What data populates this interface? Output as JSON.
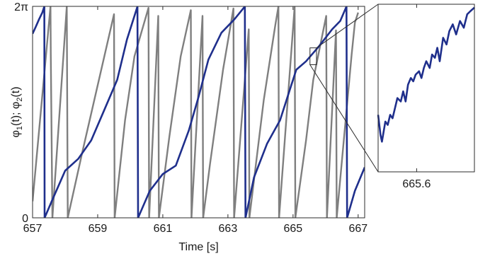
{
  "chart_data": [
    {
      "type": "line",
      "xlabel": "Time [s]",
      "ylabel": {
        "phi1_sym": "φ",
        "phi1_sub": "1",
        "phi1_arg": "(t); ",
        "phi2_sym": "φ",
        "phi2_sub": "2",
        "phi2_arg": "(t)"
      },
      "xlim": [
        657,
        667.2
      ],
      "ylim": [
        0,
        6.2832
      ],
      "x_ticks": [
        {
          "value": 657,
          "label": "657"
        },
        {
          "value": 659,
          "label": "659"
        },
        {
          "value": 661,
          "label": "661"
        },
        {
          "value": 663,
          "label": "663"
        },
        {
          "value": 665,
          "label": "665"
        },
        {
          "value": 667,
          "label": "667"
        }
      ],
      "y_ticks": [
        {
          "value": 0,
          "label": "0"
        },
        {
          "value": 6.2832,
          "label": "2π"
        }
      ],
      "series": [
        {
          "color": "#7f7f7f",
          "width": 2.4,
          "points": [
            [
              657,
              0.49
            ],
            [
              657.55,
              6.28
            ],
            [
              657.56,
              4.88
            ],
            [
              657.61,
              0.0
            ],
            [
              658.05,
              6.28
            ],
            [
              658.08,
              0.0
            ],
            [
              658.54,
              2.0
            ],
            [
              659.5,
              6.05
            ],
            [
              659.52,
              0.0
            ],
            [
              659.84,
              2.9
            ],
            [
              660.13,
              4.8
            ],
            [
              660.56,
              6.24
            ],
            [
              660.58,
              0.0
            ],
            [
              660.86,
              6.0
            ],
            [
              660.88,
              0.0
            ],
            [
              661.2,
              2.4
            ],
            [
              661.55,
              4.8
            ],
            [
              661.86,
              6.17
            ],
            [
              661.88,
              0.0
            ],
            [
              662.22,
              6.0
            ],
            [
              662.24,
              0.0
            ],
            [
              662.45,
              1.6
            ],
            [
              662.85,
              4.4
            ],
            [
              663.17,
              6.22
            ],
            [
              663.19,
              0.0
            ],
            [
              663.64,
              5.6
            ],
            [
              663.66,
              0.0
            ],
            [
              664.1,
              3.5
            ],
            [
              664.45,
              5.7
            ],
            [
              664.55,
              6.28
            ],
            [
              664.57,
              0.0
            ],
            [
              665.05,
              6.28
            ],
            [
              665.07,
              0.0
            ],
            [
              665.4,
              2.3
            ],
            [
              665.62,
              4.1
            ],
            [
              666.02,
              6.0
            ],
            [
              666.04,
              0.0
            ],
            [
              666.32,
              5.57
            ],
            [
              666.34,
              0.0
            ],
            [
              666.8,
              4.85
            ],
            [
              666.9,
              5.8
            ],
            [
              667.0,
              6.1
            ]
          ]
        },
        {
          "color": "#1f2f8c",
          "width": 2.6,
          "points": [
            [
              657,
              5.47
            ],
            [
              657.1,
              5.68
            ],
            [
              657.2,
              5.9
            ],
            [
              657.3,
              6.1
            ],
            [
              657.36,
              6.28
            ],
            [
              657.37,
              0.0
            ],
            [
              657.6,
              0.52
            ],
            [
              658.0,
              1.4
            ],
            [
              658.4,
              1.75
            ],
            [
              658.8,
              2.3
            ],
            [
              659.2,
              3.2
            ],
            [
              659.6,
              4.1
            ],
            [
              659.9,
              5.3
            ],
            [
              660.22,
              6.28
            ],
            [
              660.24,
              0.0
            ],
            [
              660.6,
              0.8
            ],
            [
              661.0,
              1.3
            ],
            [
              661.4,
              1.55
            ],
            [
              661.8,
              2.6
            ],
            [
              662.1,
              3.6
            ],
            [
              662.4,
              4.7
            ],
            [
              662.8,
              5.5
            ],
            [
              663.2,
              5.9
            ],
            [
              663.52,
              6.28
            ],
            [
              663.54,
              0.0
            ],
            [
              663.8,
              1.2
            ],
            [
              664.2,
              2.2
            ],
            [
              664.6,
              2.9
            ],
            [
              664.9,
              3.8
            ],
            [
              665.1,
              4.4
            ],
            [
              665.4,
              4.65
            ],
            [
              665.8,
              5.1
            ],
            [
              666.2,
              5.6
            ],
            [
              666.45,
              5.85
            ],
            [
              666.64,
              6.28
            ],
            [
              666.66,
              0.0
            ],
            [
              666.9,
              0.8
            ],
            [
              667.2,
              1.5
            ]
          ]
        }
      ]
    },
    {
      "type": "line",
      "role": "inset-zoom",
      "xlim": [
        665.52,
        665.72
      ],
      "ylim": [
        4.55,
        5.05
      ],
      "x_ticks": [
        {
          "value": 665.6,
          "label": "665.6"
        }
      ],
      "zoom_source": {
        "x": [
          665.52,
          665.72
        ],
        "y": [
          4.55,
          5.05
        ]
      },
      "series": [
        {
          "color": "#1f2f8c",
          "width": 2.6,
          "points": [
            [
              665.52,
              4.72
            ],
            [
              665.525,
              4.66
            ],
            [
              665.528,
              4.64
            ],
            [
              665.535,
              4.7
            ],
            [
              665.54,
              4.69
            ],
            [
              665.545,
              4.72
            ],
            [
              665.55,
              4.71
            ],
            [
              665.555,
              4.74
            ],
            [
              665.56,
              4.77
            ],
            [
              665.567,
              4.76
            ],
            [
              665.572,
              4.79
            ],
            [
              665.577,
              4.76
            ],
            [
              665.582,
              4.81
            ],
            [
              665.588,
              4.83
            ],
            [
              665.593,
              4.82
            ],
            [
              665.598,
              4.84
            ],
            [
              665.605,
              4.85
            ],
            [
              665.61,
              4.83
            ],
            [
              665.615,
              4.86
            ],
            [
              665.62,
              4.88
            ],
            [
              665.627,
              4.86
            ],
            [
              665.632,
              4.9
            ],
            [
              665.638,
              4.89
            ],
            [
              665.643,
              4.92
            ],
            [
              665.648,
              4.88
            ],
            [
              665.655,
              4.95
            ],
            [
              665.662,
              4.93
            ],
            [
              665.668,
              4.97
            ],
            [
              665.675,
              4.99
            ],
            [
              665.682,
              4.96
            ],
            [
              665.69,
              5.0
            ],
            [
              665.698,
              4.98
            ],
            [
              665.705,
              5.02
            ],
            [
              665.712,
              5.03
            ],
            [
              665.72,
              5.04
            ]
          ]
        }
      ]
    }
  ]
}
